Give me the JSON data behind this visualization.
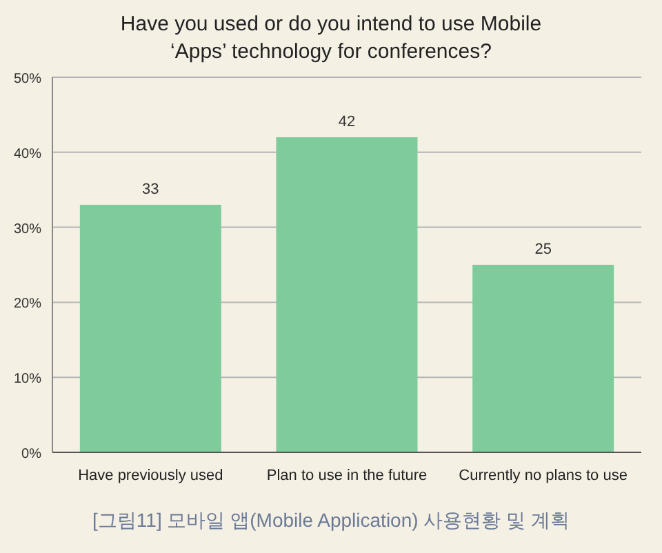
{
  "chart_data": {
    "type": "bar",
    "title": "Have you used or do you intend to use Mobile\n‘Apps’ technology for conferences?",
    "categories": [
      "Have previously used",
      "Plan to use in the future",
      "Currently no plans to use"
    ],
    "values": [
      33,
      42,
      25
    ],
    "color": "#80cb9c",
    "data_labels": true,
    "grid": "y",
    "ylim": [
      0,
      50
    ],
    "yticks": [
      {
        "value": 0,
        "label": "0%"
      },
      {
        "value": 10,
        "label": "10%"
      },
      {
        "value": 20,
        "label": "20%"
      },
      {
        "value": 30,
        "label": "30%"
      },
      {
        "value": 40,
        "label": "40%"
      },
      {
        "value": 50,
        "label": "50%"
      }
    ],
    "annotations": [
      "[그림11] 모바일 앱(Mobile Application) 사용현황 및 계획"
    ]
  }
}
